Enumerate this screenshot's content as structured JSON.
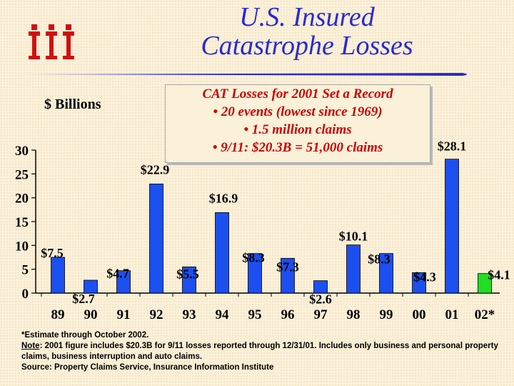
{
  "header": {
    "title_line1": "U.S. Insured",
    "title_line2": "Catastrophe Losses",
    "units_label": "$ Billions"
  },
  "callout": {
    "heading": "CAT Losses for 2001 Set a Record",
    "line1": "• 20 events (lowest since 1969)",
    "line2": "• 1.5 million claims",
    "line3": "• 9/11: $20.3B = 51,000 claims"
  },
  "colors": {
    "accent": "#2a2ad0",
    "bar": "#1c4ff0",
    "estimate_bar": "#22dd22",
    "callout_text": "#cc0000"
  },
  "chart_data": {
    "type": "bar",
    "title": "U.S. Insured Catastrophe Losses",
    "ylabel": "$ Billions",
    "xlabel": "",
    "ylim": [
      0,
      30
    ],
    "yticks": [
      0,
      5,
      10,
      15,
      20,
      25,
      30
    ],
    "grid": false,
    "categories": [
      "89",
      "90",
      "91",
      "92",
      "93",
      "94",
      "95",
      "96",
      "97",
      "98",
      "99",
      "00",
      "01",
      "02*"
    ],
    "values": [
      7.5,
      2.7,
      4.7,
      22.9,
      5.5,
      16.9,
      8.3,
      7.3,
      2.6,
      10.1,
      8.3,
      4.3,
      28.1,
      4.1
    ],
    "data_labels": [
      "$7.5",
      "$2.7",
      "$4.7",
      "$22.9",
      "$5.5",
      "$16.9",
      "$8.3",
      "$7.3",
      "$2.6",
      "$10.1",
      "$8.3",
      "$4.3",
      "$28.1",
      "$4.1"
    ],
    "estimate_index": 13
  },
  "footnotes": {
    "estimate": "*Estimate through October 2002.",
    "note_label": "Note",
    "note_text": ": 2001 figure includes $20.3B for 9/11 losses reported through 12/31/01.  Includes only business and personal property claims, business interruption and auto claims.",
    "source": "Source:  Property Claims Service, Insurance Information Institute"
  }
}
